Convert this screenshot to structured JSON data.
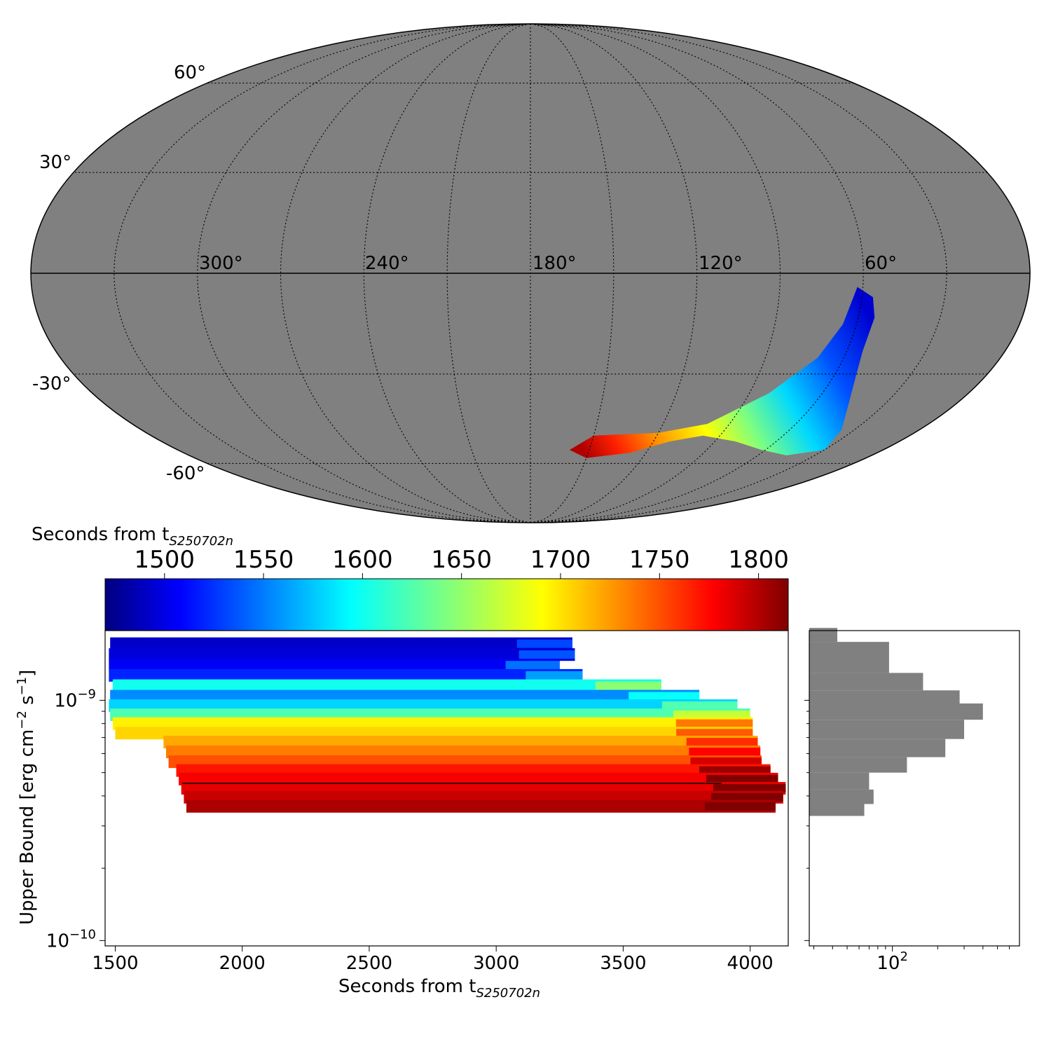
{
  "chart_data": [
    {
      "type": "sky_map",
      "projection": "mollweide",
      "background_color": "#808080",
      "colormap": "jet",
      "lat_tick_labels": [
        "60°",
        "30°",
        "-30°",
        "-60°"
      ],
      "lon_tick_labels": [
        "300°",
        "240°",
        "180°",
        "120°",
        "60°"
      ],
      "region_color_range": [
        1470,
        1815
      ],
      "region": {
        "description_hidden": true,
        "outline_lonlat": [
          [
            62,
            -4
          ],
          [
            56,
            -7
          ],
          [
            54,
            -13
          ],
          [
            54,
            -23
          ],
          [
            50,
            -33
          ],
          [
            44,
            -41
          ],
          [
            36,
            -48
          ],
          [
            30,
            -55
          ],
          [
            45,
            -57
          ],
          [
            62,
            -55
          ],
          [
            80,
            -52
          ],
          [
            98,
            -50
          ],
          [
            112,
            -52
          ],
          [
            128,
            -56
          ],
          [
            150,
            -58
          ],
          [
            160,
            -55
          ],
          [
            150,
            -50
          ],
          [
            120,
            -49
          ],
          [
            100,
            -46
          ],
          [
            82,
            -36
          ],
          [
            70,
            -25
          ],
          [
            65,
            -15
          ]
        ]
      }
    },
    {
      "type": "colorbar",
      "colormap": "jet",
      "label": "Seconds from t",
      "label_subscript": "S250702n",
      "range": [
        1470,
        1815
      ],
      "ticks": [
        "1500",
        "1550",
        "1600",
        "1650",
        "1700",
        "1750",
        "1800"
      ]
    },
    {
      "type": "horizontal_bar",
      "xlabel": "Seconds from t",
      "xlabel_subscript": "S250702n",
      "ylabel": "Upper Bound [erg cm",
      "ylabel_sup1": "−2",
      "ylabel_mid": " s",
      "ylabel_sup2": "−1",
      "ylabel_end": "]",
      "xlim": [
        1460,
        4150
      ],
      "ylim": [
        9.5e-11,
        1.95e-09
      ],
      "yscale": "log",
      "xticks": [
        "1500",
        "2000",
        "2500",
        "3000",
        "3500",
        "4000"
      ],
      "yticks": [
        {
          "base": "10",
          "exp": "−9",
          "value": 1e-09
        },
        {
          "base": "10",
          "exp": "−10",
          "value": 1e-10
        }
      ],
      "color_by": "start_time_seconds",
      "bands": [
        {
          "y": 1.72e-09,
          "start": 1480,
          "end": 3300,
          "t": 1495
        },
        {
          "y": 1.55e-09,
          "start": 1475,
          "end": 3310,
          "t": 1500
        },
        {
          "y": 1.4e-09,
          "start": 1475,
          "end": 3250,
          "t": 1510
        },
        {
          "y": 1.27e-09,
          "start": 1475,
          "end": 3340,
          "t": 1525
        },
        {
          "y": 1.15e-09,
          "start": 1490,
          "end": 3650,
          "t": 1605
        },
        {
          "y": 1.04e-09,
          "start": 1480,
          "end": 3800,
          "t": 1560
        },
        {
          "y": 9.5e-10,
          "start": 1475,
          "end": 3950,
          "t": 1585
        },
        {
          "y": 8.7e-10,
          "start": 1480,
          "end": 4000,
          "t": 1625
        },
        {
          "y": 8e-10,
          "start": 1490,
          "end": 4010,
          "t": 1690
        },
        {
          "y": 7.3e-10,
          "start": 1500,
          "end": 4010,
          "t": 1700
        },
        {
          "y": 6.7e-10,
          "start": 1690,
          "end": 4030,
          "t": 1715
        },
        {
          "y": 6.1e-10,
          "start": 1700,
          "end": 4040,
          "t": 1730
        },
        {
          "y": 5.55e-10,
          "start": 1710,
          "end": 4045,
          "t": 1745
        },
        {
          "y": 5.1e-10,
          "start": 1740,
          "end": 4080,
          "t": 1765
        },
        {
          "y": 4.7e-10,
          "start": 1750,
          "end": 4110,
          "t": 1775
        },
        {
          "y": 4.3e-10,
          "start": 1760,
          "end": 4140,
          "t": 1780
        },
        {
          "y": 3.95e-10,
          "start": 1770,
          "end": 4130,
          "t": 1790
        },
        {
          "y": 3.62e-10,
          "start": 1780,
          "end": 4100,
          "t": 1800
        }
      ]
    },
    {
      "type": "histogram",
      "orientation": "horizontal",
      "xscale": "log",
      "xticks": [
        {
          "base": "10",
          "exp": "2"
        }
      ],
      "color": "#808080",
      "bins": [
        {
          "y0": 1.75e-09,
          "y1": 2e-09,
          "count": 43
        },
        {
          "y0": 1.3e-09,
          "y1": 1.75e-09,
          "count": 95
        },
        {
          "y0": 1.1e-09,
          "y1": 1.3e-09,
          "count": 160
        },
        {
          "y0": 9.7e-10,
          "y1": 1.1e-09,
          "count": 280
        },
        {
          "y0": 8.3e-10,
          "y1": 9.7e-10,
          "count": 400
        },
        {
          "y0": 6.9e-10,
          "y1": 8.3e-10,
          "count": 300
        },
        {
          "y0": 5.8e-10,
          "y1": 6.9e-10,
          "count": 225
        },
        {
          "y0": 5e-10,
          "y1": 5.8e-10,
          "count": 125
        },
        {
          "y0": 4.25e-10,
          "y1": 5e-10,
          "count": 70
        },
        {
          "y0": 3.7e-10,
          "y1": 4.25e-10,
          "count": 75
        },
        {
          "y0": 3.3e-10,
          "y1": 3.7e-10,
          "count": 65
        }
      ]
    }
  ]
}
